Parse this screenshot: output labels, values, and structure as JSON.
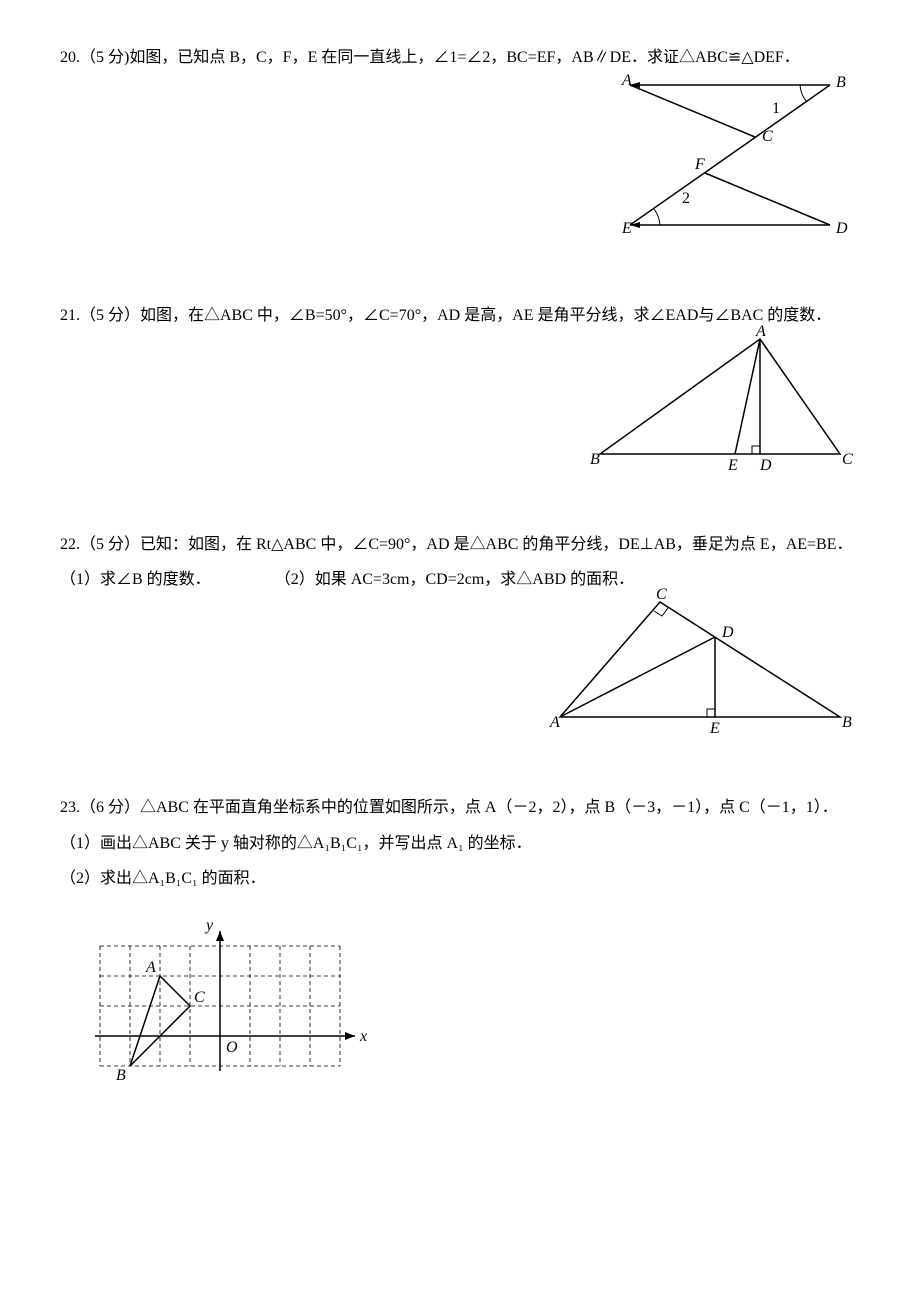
{
  "p20": {
    "text": "20.（5 分)如图，已知点 B，C，F，E 在同一直线上，∠1=∠2，BC=EF，AB∥DE．求证△ABC≌△DEF．",
    "labels": {
      "A": "A",
      "B": "B",
      "C": "C",
      "D": "D",
      "E": "E",
      "F": "F",
      "one": "1",
      "two": "2"
    },
    "stroke": "#000000"
  },
  "p21": {
    "text": "21.（5 分）如图，在△ABC 中，∠B=50°，∠C=70°，AD 是高，AE 是角平分线，求∠EAD与∠BAC 的度数．",
    "labels": {
      "A": "A",
      "B": "B",
      "C": "C",
      "D": "D",
      "E": "E"
    },
    "stroke": "#000000"
  },
  "p22": {
    "text1": "22.（5 分）已知：如图，在 Rt△ABC 中，∠C=90°，AD 是△ABC 的角平分线，DE⊥AB，垂足为点 E，AE=BE．",
    "part1": "（1）求∠B 的度数．",
    "part2": "（2）如果 AC=3cm，CD=2cm，求△ABD 的面积．",
    "labels": {
      "A": "A",
      "B": "B",
      "C": "C",
      "D": "D",
      "E": "E"
    },
    "stroke": "#000000"
  },
  "p23": {
    "text1": "23.（6 分）△ABC 在平面直角坐标系中的位置如图所示，点 A（－2，2），点 B（－3，－1），点 C（－1，1）．",
    "part1": "（1）画出△ABC 关于 y 轴对称的△A₁B₁C₁，并写出点 A₁ 的坐标．",
    "part2": "（2）求出△A₁B₁C₁ 的面积．",
    "labels": {
      "A": "A",
      "B": "B",
      "C": "C",
      "O": "O",
      "x": "x",
      "y": "y"
    },
    "stroke": "#000000",
    "dash": "4,3",
    "grid": {
      "xmin": -4,
      "xmax": 4,
      "ymin": -1,
      "ymax": 3,
      "A": [
        -2,
        2
      ],
      "B": [
        -3,
        -1
      ],
      "C": [
        -1,
        1
      ]
    }
  }
}
